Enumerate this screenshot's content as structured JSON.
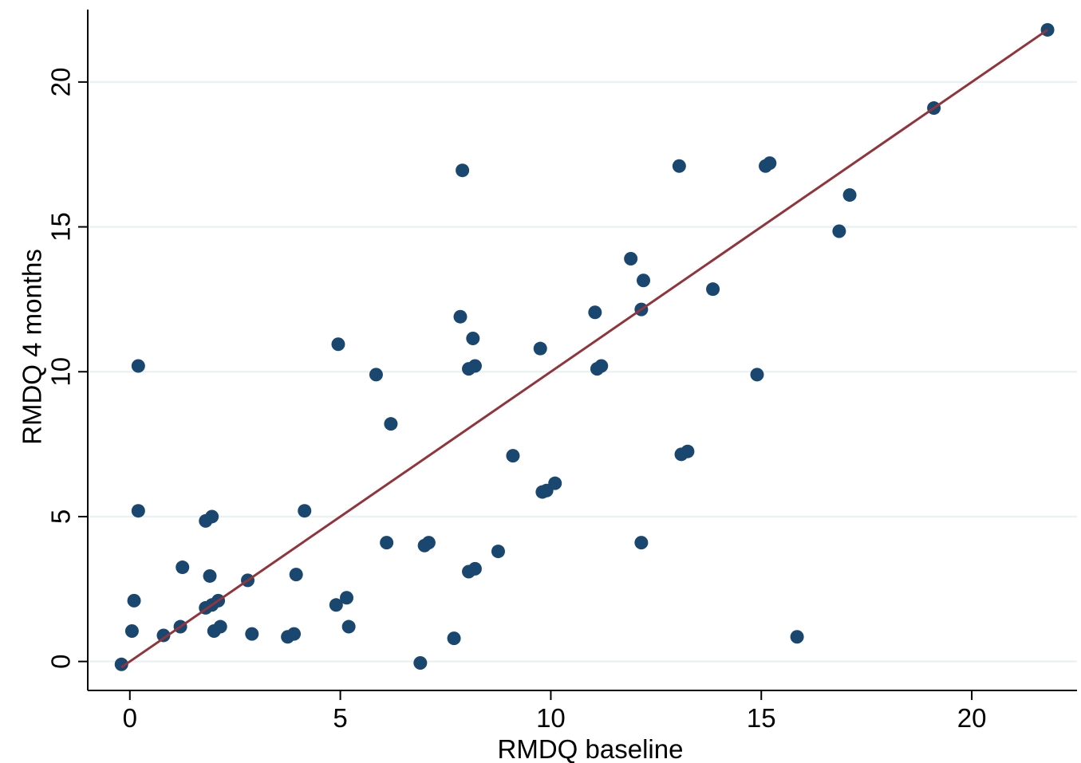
{
  "chart_data": {
    "type": "scatter",
    "xlabel": "RMDQ baseline",
    "ylabel": "RMDQ 4 months",
    "xlim": [
      -1,
      22.5
    ],
    "ylim": [
      -1,
      22.5
    ],
    "xticks": [
      0,
      5,
      10,
      15,
      20
    ],
    "yticks": [
      0,
      5,
      10,
      15,
      20
    ],
    "grid": "horizontal",
    "marker_color": "#1a476f",
    "line_color": "#90353b",
    "reference_line": {
      "from": [
        -0.2,
        -0.2
      ],
      "to": [
        21.8,
        21.8
      ]
    },
    "points": [
      [
        -0.2,
        -0.1
      ],
      [
        0.1,
        2.1
      ],
      [
        0.2,
        10.2
      ],
      [
        0.2,
        5.2
      ],
      [
        0.05,
        1.05
      ],
      [
        0.8,
        0.9
      ],
      [
        1.2,
        1.2
      ],
      [
        1.25,
        3.25
      ],
      [
        1.8,
        4.85
      ],
      [
        1.95,
        5.0
      ],
      [
        1.9,
        2.95
      ],
      [
        1.8,
        1.85
      ],
      [
        1.95,
        1.95
      ],
      [
        2.1,
        2.1
      ],
      [
        2.0,
        1.05
      ],
      [
        2.15,
        1.2
      ],
      [
        2.8,
        2.8
      ],
      [
        2.9,
        0.95
      ],
      [
        3.75,
        0.85
      ],
      [
        3.9,
        0.95
      ],
      [
        3.95,
        3.0
      ],
      [
        4.15,
        5.2
      ],
      [
        4.9,
        1.95
      ],
      [
        4.95,
        10.95
      ],
      [
        5.15,
        2.2
      ],
      [
        5.2,
        1.2
      ],
      [
        5.85,
        9.9
      ],
      [
        6.1,
        4.1
      ],
      [
        6.2,
        8.2
      ],
      [
        6.9,
        -0.05
      ],
      [
        7.0,
        4.0
      ],
      [
        7.1,
        4.1
      ],
      [
        7.7,
        0.8
      ],
      [
        7.85,
        11.9
      ],
      [
        7.9,
        16.95
      ],
      [
        8.05,
        10.1
      ],
      [
        8.05,
        3.1
      ],
      [
        8.15,
        11.15
      ],
      [
        8.2,
        10.2
      ],
      [
        8.2,
        3.2
      ],
      [
        8.75,
        3.8
      ],
      [
        9.1,
        7.1
      ],
      [
        9.75,
        10.8
      ],
      [
        9.8,
        5.85
      ],
      [
        9.9,
        5.9
      ],
      [
        10.1,
        6.15
      ],
      [
        11.05,
        12.05
      ],
      [
        11.1,
        10.1
      ],
      [
        11.2,
        10.2
      ],
      [
        11.9,
        13.9
      ],
      [
        12.15,
        12.15
      ],
      [
        12.2,
        13.15
      ],
      [
        12.15,
        4.1
      ],
      [
        13.05,
        17.1
      ],
      [
        13.1,
        7.15
      ],
      [
        13.25,
        7.25
      ],
      [
        13.85,
        12.85
      ],
      [
        14.9,
        9.9
      ],
      [
        15.1,
        17.1
      ],
      [
        15.2,
        17.2
      ],
      [
        15.85,
        0.85
      ],
      [
        16.85,
        14.85
      ],
      [
        17.1,
        16.1
      ],
      [
        19.1,
        19.1
      ],
      [
        21.8,
        21.8
      ]
    ]
  }
}
